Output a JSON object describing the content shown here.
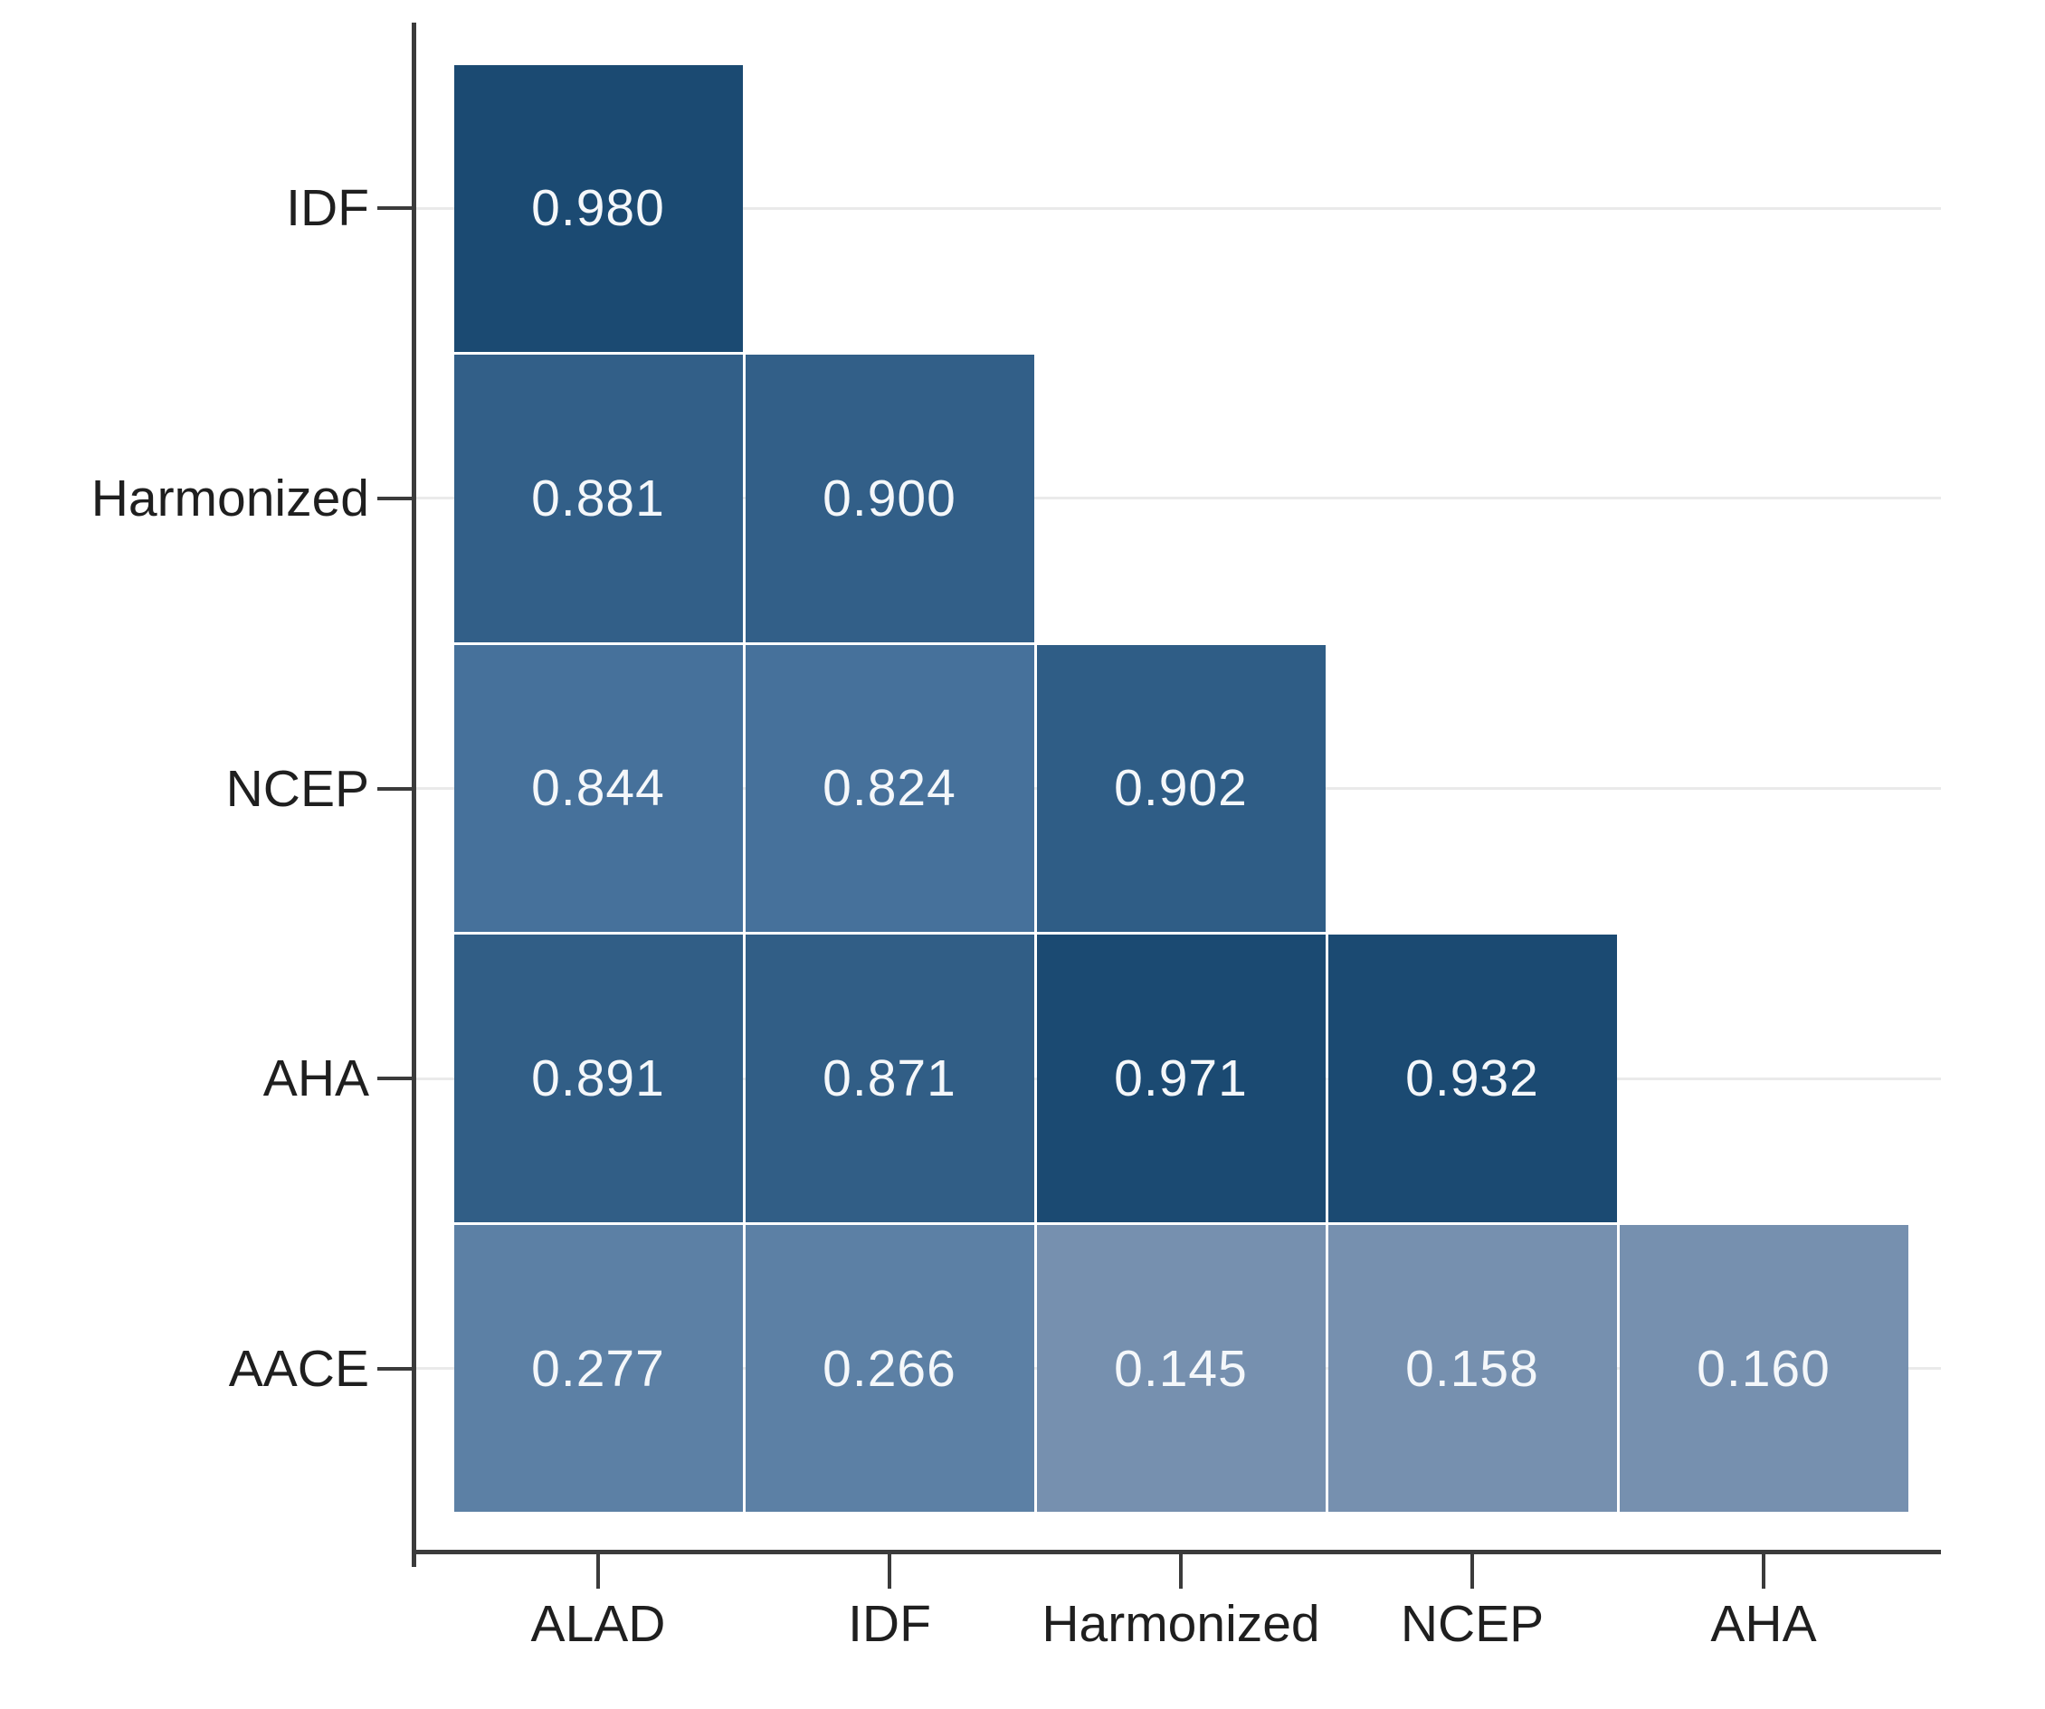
{
  "figure": {
    "background_color": "#ffffff",
    "axis_color": "#3b3b3b",
    "gridline_color": "#eaeaea",
    "cell_text_color": "#f4f7fa",
    "label_text_color": "#1f1f1f",
    "cell_separator_color": "#ffffff"
  },
  "chart_data": {
    "type": "heatmap",
    "shape": "lower-triangular",
    "grid": "horizontal-only",
    "legend_position": "none",
    "x_categories": [
      "ALAD",
      "IDF",
      "Harmonized",
      "NCEP",
      "AHA"
    ],
    "y_categories": [
      "IDF",
      "Harmonized",
      "NCEP",
      "AHA",
      "AACE"
    ],
    "value_decimals": 3,
    "rows": [
      {
        "label": "IDF",
        "values": [
          0.98
        ],
        "colors": [
          "#1b4a72"
        ]
      },
      {
        "label": "Harmonized",
        "values": [
          0.881,
          0.9
        ],
        "colors": [
          "#325f88",
          "#325f88"
        ]
      },
      {
        "label": "NCEP",
        "values": [
          0.844,
          0.824,
          0.902
        ],
        "colors": [
          "#46719b",
          "#46719b",
          "#2f5d86"
        ]
      },
      {
        "label": "AHA",
        "values": [
          0.891,
          0.871,
          0.971,
          0.932
        ],
        "colors": [
          "#315e86",
          "#315e86",
          "#1b4a72",
          "#1b4a72"
        ]
      },
      {
        "label": "AACE",
        "values": [
          0.277,
          0.266,
          0.145,
          0.158,
          0.16
        ],
        "colors": [
          "#5c80a5",
          "#5c80a5",
          "#7690af",
          "#7690af",
          "#7690af"
        ]
      }
    ]
  }
}
